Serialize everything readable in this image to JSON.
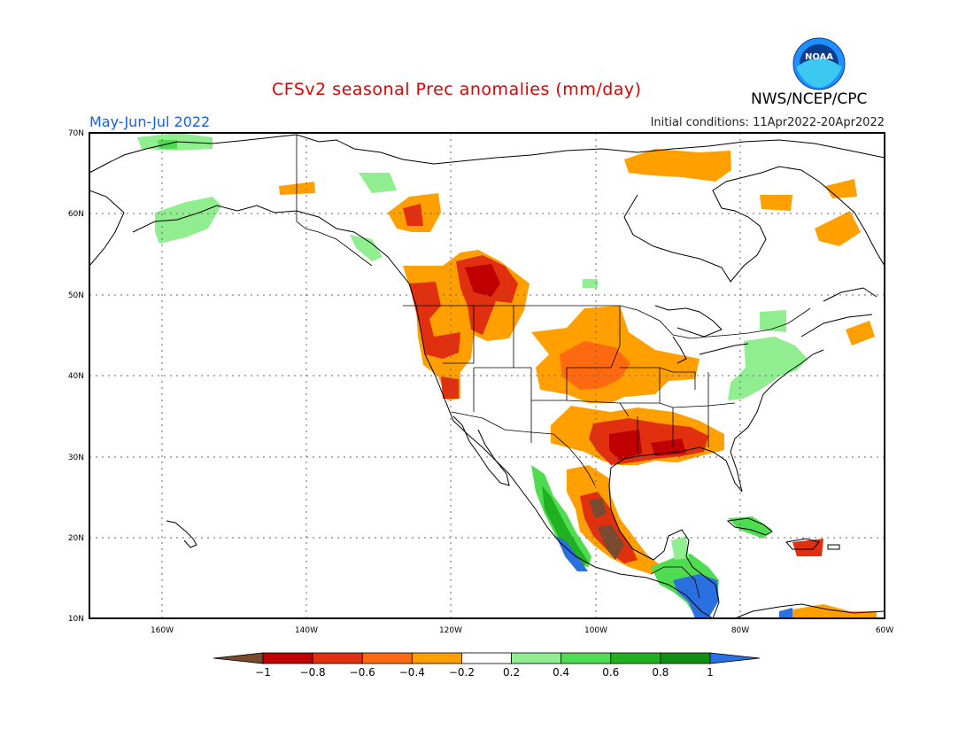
{
  "header": {
    "title": "CFSv2 seasonal Prec anomalies (mm/day)",
    "period": "May-Jun-Jul 2022",
    "initial_conditions": "Initial conditions: 11Apr2022-20Apr2022",
    "agency": "NWS/NCEP/CPC",
    "logo_text": "NOAA"
  },
  "map": {
    "lon_range": [
      -170,
      -60
    ],
    "lat_range": [
      10,
      70
    ],
    "lat_ticks": [
      "70N",
      "60N",
      "50N",
      "40N",
      "30N",
      "20N",
      "10N"
    ],
    "lon_ticks": [
      "160W",
      "140W",
      "120W",
      "100W",
      "80W",
      "60W"
    ],
    "gridlines": "dotted",
    "anomaly_regions": [
      {
        "name": "Pacific Northwest",
        "level": "-0.6"
      },
      {
        "name": "Northern Rockies",
        "level": "-0.8"
      },
      {
        "name": "Northern Plains",
        "level": "-0.4"
      },
      {
        "name": "Southern Plains / Gulf Coast",
        "level": "-0.8"
      },
      {
        "name": "Eastern Mexico",
        "level": "-1"
      },
      {
        "name": "Western Mexico coast",
        "level": "1"
      },
      {
        "name": "Central America",
        "level": "1"
      },
      {
        "name": "Alaska",
        "level": "0.2"
      },
      {
        "name": "Northeast US",
        "level": "0.2"
      },
      {
        "name": "Hudson Bay",
        "level": "-0.4"
      }
    ]
  },
  "colorbar": {
    "labels": [
      "-1",
      "-0.8",
      "-0.6",
      "-0.4",
      "-0.2",
      "0.2",
      "0.4",
      "0.6",
      "0.8",
      "1"
    ],
    "colors": [
      "#7a4a2e",
      "#c00000",
      "#e03010",
      "#ff6a10",
      "#ffa000",
      "#ffffff",
      "#90ee90",
      "#50dc50",
      "#20b020",
      "#109010",
      "#2a70e0"
    ]
  }
}
